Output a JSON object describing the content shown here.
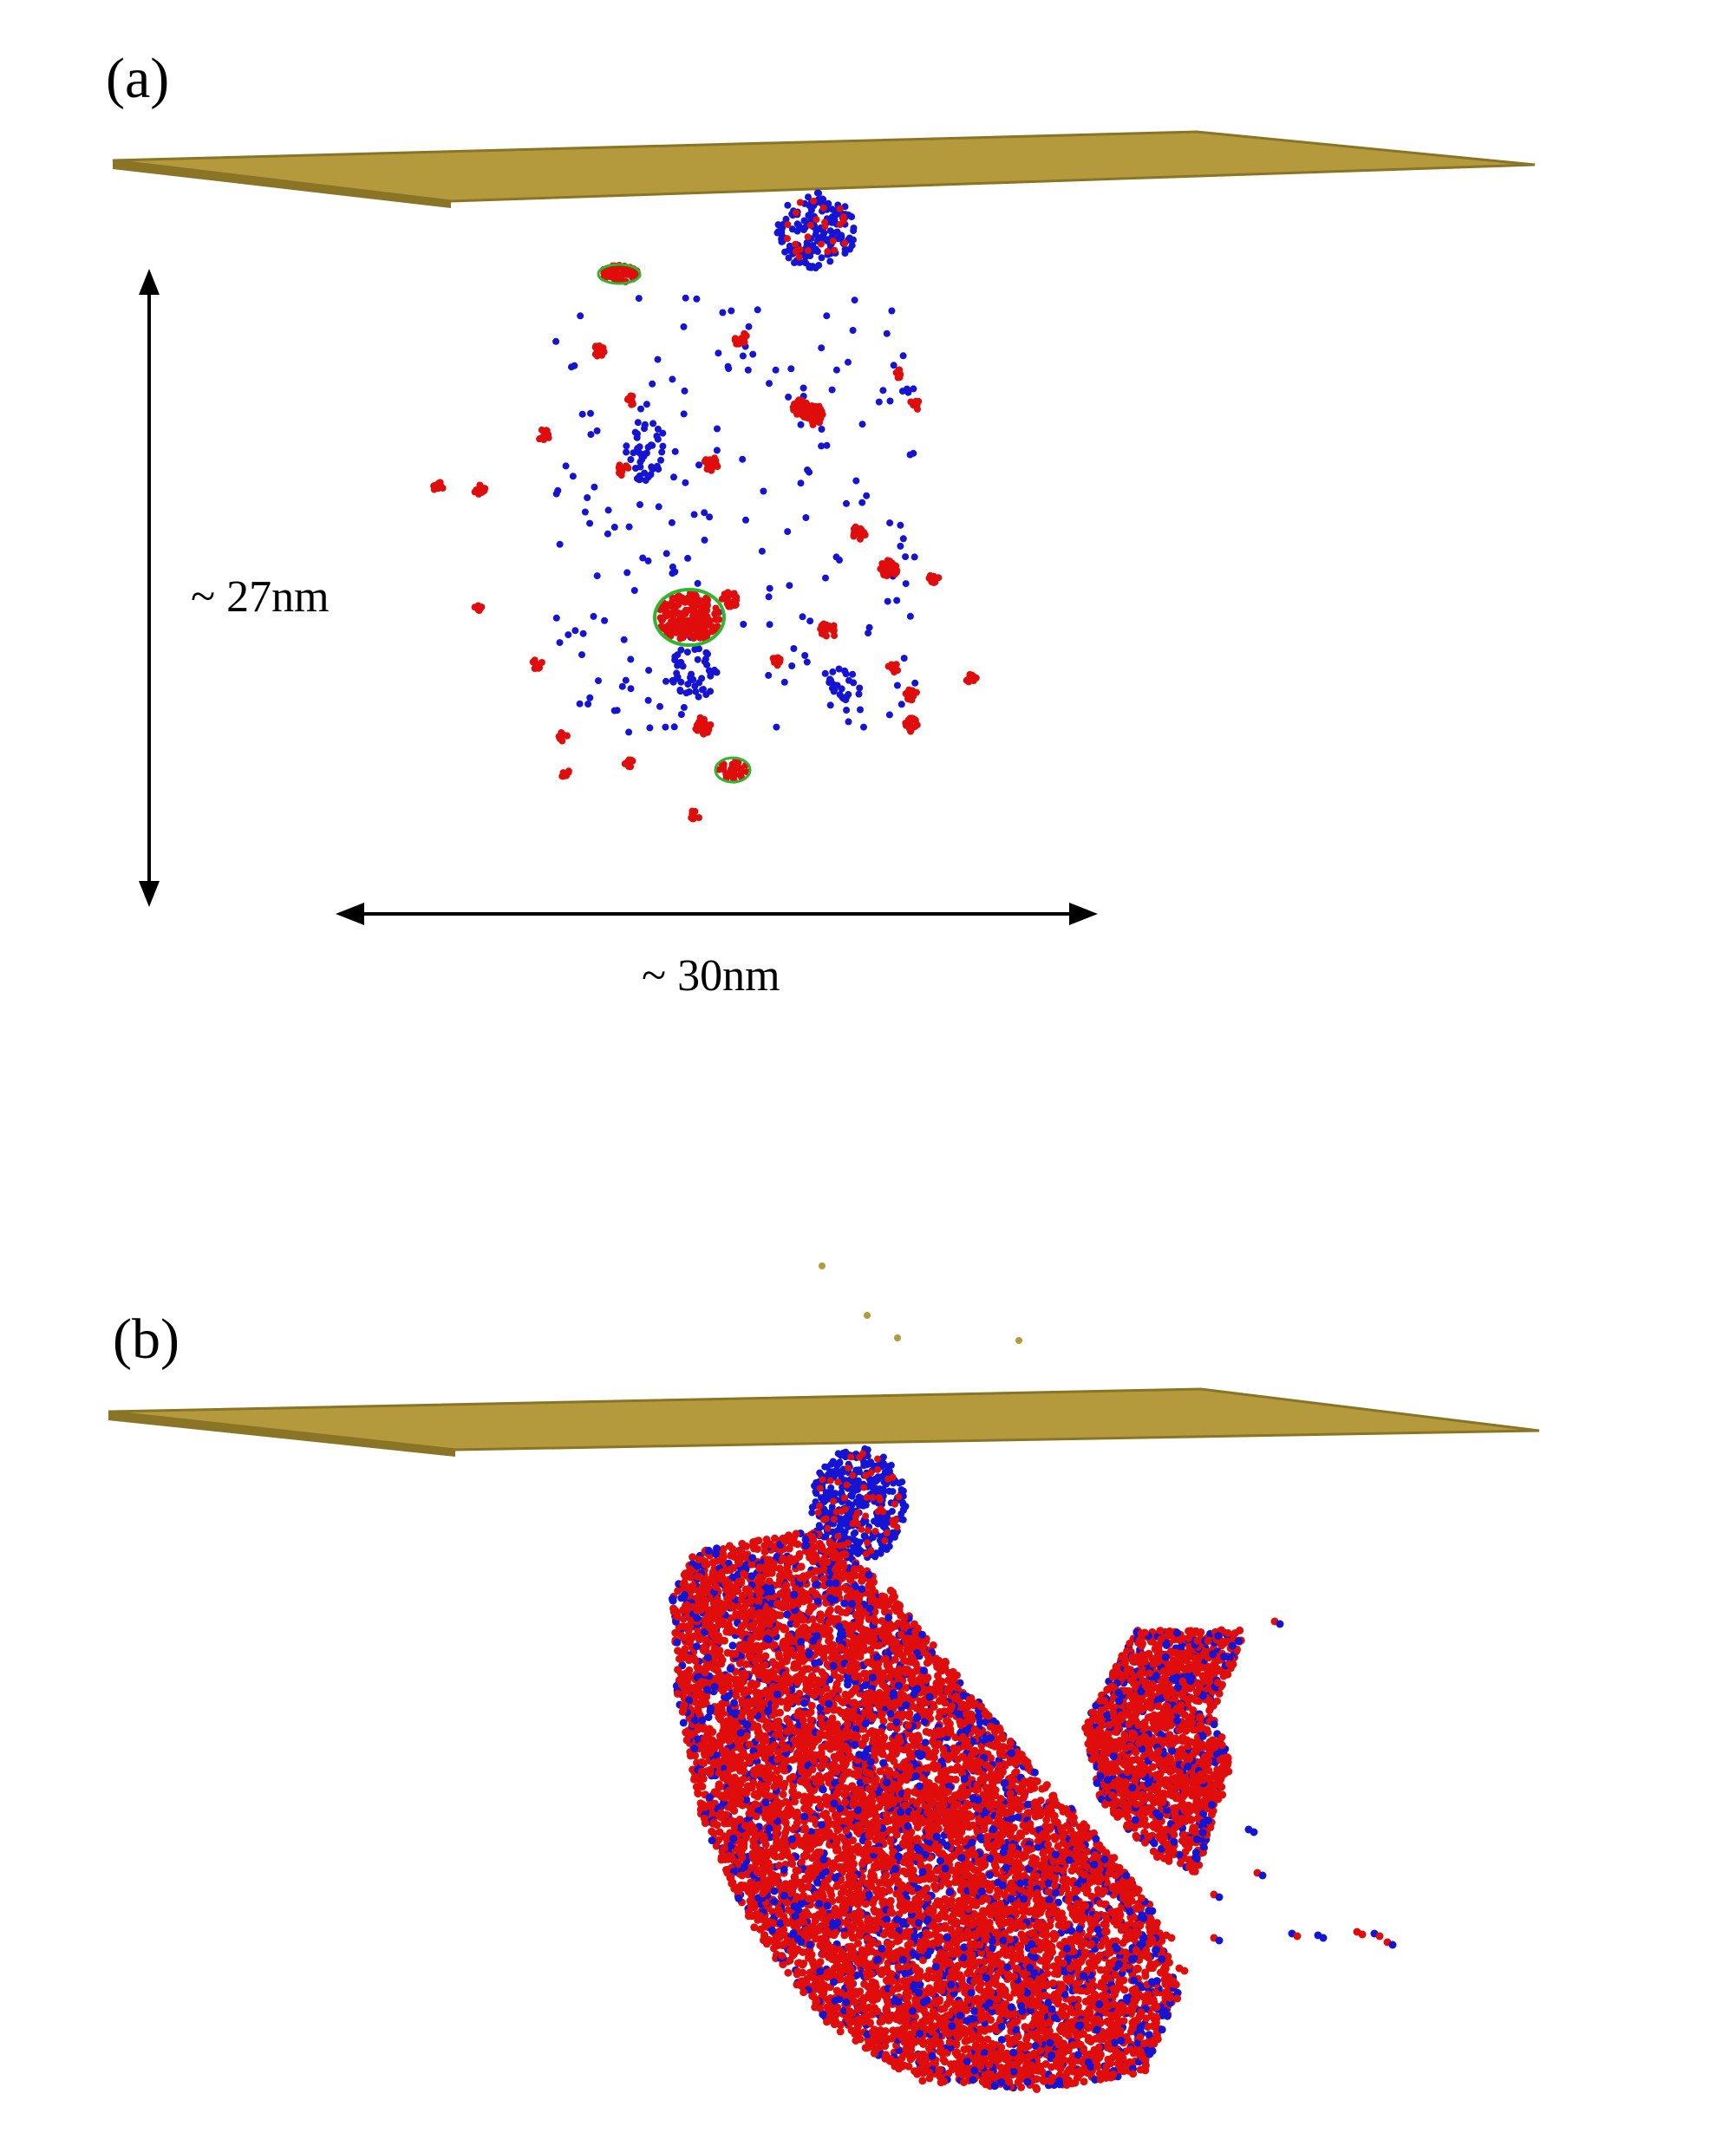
{
  "panels": [
    {
      "label": "(a)"
    },
    {
      "label": "(b)"
    }
  ],
  "dimensions": {
    "vertical": "~ 27nm",
    "horizontal": "~ 30nm"
  },
  "colors": {
    "plate": "#b49a3c",
    "plate_edge": "#8a7425",
    "atom_red": "#e00d0d",
    "atom_blue": "#1414d2",
    "atom_green": "#2fb52f",
    "arrow": "#000000"
  }
}
